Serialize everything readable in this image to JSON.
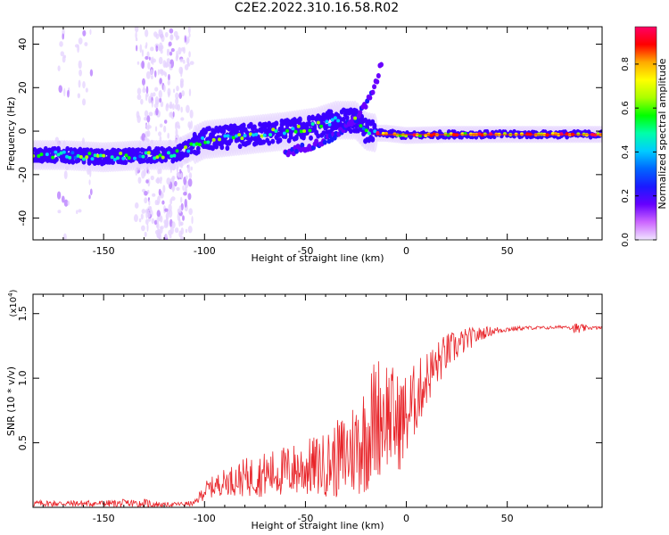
{
  "title": "C2E2.2022.310.16.58.R02",
  "colors": {
    "snr_line": "#e8252a",
    "colorscale": [
      "#f0e6ff",
      "#cc66ff",
      "#6600ff",
      "#1a1aff",
      "#0066ff",
      "#00ccff",
      "#00ffaa",
      "#00ff00",
      "#aaff00",
      "#ffff00",
      "#ffaa00",
      "#ff0000",
      "#ff0066"
    ]
  },
  "chart_data": [
    {
      "type": "heatmap",
      "xlabel": "Height of straight line (km)",
      "ylabel": "Frequency (Hz)",
      "xlim": [
        -185,
        97
      ],
      "ylim": [
        -50,
        48
      ],
      "x_ticks": [
        -150,
        -100,
        -50,
        0,
        50
      ],
      "y_ticks": [
        -40,
        -20,
        0,
        20,
        40
      ],
      "x_tick_labels": [
        "-150",
        "-100",
        "-50",
        "0",
        "50"
      ],
      "y_tick_labels": [
        "-40",
        "-20",
        "0",
        "20",
        "40"
      ],
      "colorbar": {
        "label": "Normalized spectral amplitude",
        "range": [
          0,
          0.97
        ],
        "ticks": [
          0.0,
          0.2,
          0.4,
          0.6,
          0.8
        ],
        "tick_labels": [
          "0.0",
          "0.2",
          "0.4",
          "0.6",
          "0.8"
        ]
      },
      "ridge": {
        "x": [
          -185,
          -170,
          -150,
          -130,
          -115,
          -100,
          -80,
          -60,
          -45,
          -35,
          -25,
          -20,
          -15,
          -10,
          0,
          20,
          50,
          80,
          97
        ],
        "frequency": [
          -11,
          -11,
          -12,
          -11,
          -11,
          -4,
          -2,
          0,
          2,
          5,
          5,
          0,
          -1,
          -1,
          -2,
          -1.5,
          -1.5,
          -1.5,
          -1.5
        ]
      },
      "branch": {
        "x": [
          -60,
          -45,
          -35,
          -30,
          -25,
          -20,
          -15,
          -12
        ],
        "frequency": [
          -10,
          -6,
          -2,
          2,
          6,
          12,
          22,
          33
        ]
      },
      "noise_columns_x": [
        -170,
        -160,
        -130,
        -125,
        -120,
        -115,
        -110
      ]
    },
    {
      "type": "line",
      "xlabel": "Height of straight line (km)",
      "ylabel": "SNR (10 * v/v)",
      "y_scale_label": "(x10",
      "y_scale_exponent": "4",
      "y_scale_close": ")",
      "xlim": [
        -185,
        97
      ],
      "ylim": [
        0,
        16500
      ],
      "x_ticks": [
        -150,
        -100,
        -50,
        0,
        50
      ],
      "y_ticks": [
        5000,
        10000,
        15000
      ],
      "x_tick_labels": [
        "-150",
        "-100",
        "-50",
        "0",
        "50"
      ],
      "y_tick_labels": [
        "0.5",
        "1.0",
        "1.5"
      ],
      "series": [
        {
          "x": [
            -185,
            -150,
            -130,
            -120,
            -105,
            -100,
            -90,
            -80,
            -60,
            -40,
            -30,
            -20,
            -15,
            -10,
            -5,
            0,
            5,
            10,
            20,
            30,
            40,
            50,
            60,
            70,
            80,
            85,
            90,
            97
          ],
          "mean": [
            300,
            300,
            300,
            200,
            300,
            1300,
            2000,
            2300,
            2800,
            3300,
            4000,
            5500,
            7000,
            7500,
            6500,
            7000,
            8500,
            10000,
            12000,
            13000,
            13600,
            13800,
            13900,
            13900,
            14000,
            13800,
            13900,
            13900
          ],
          "spread": [
            250,
            250,
            400,
            150,
            200,
            700,
            1000,
            1500,
            2000,
            2500,
            3500,
            4500,
            5000,
            4500,
            4000,
            3500,
            2800,
            2200,
            1500,
            900,
            400,
            200,
            150,
            120,
            120,
            500,
            150,
            120
          ]
        }
      ]
    }
  ]
}
